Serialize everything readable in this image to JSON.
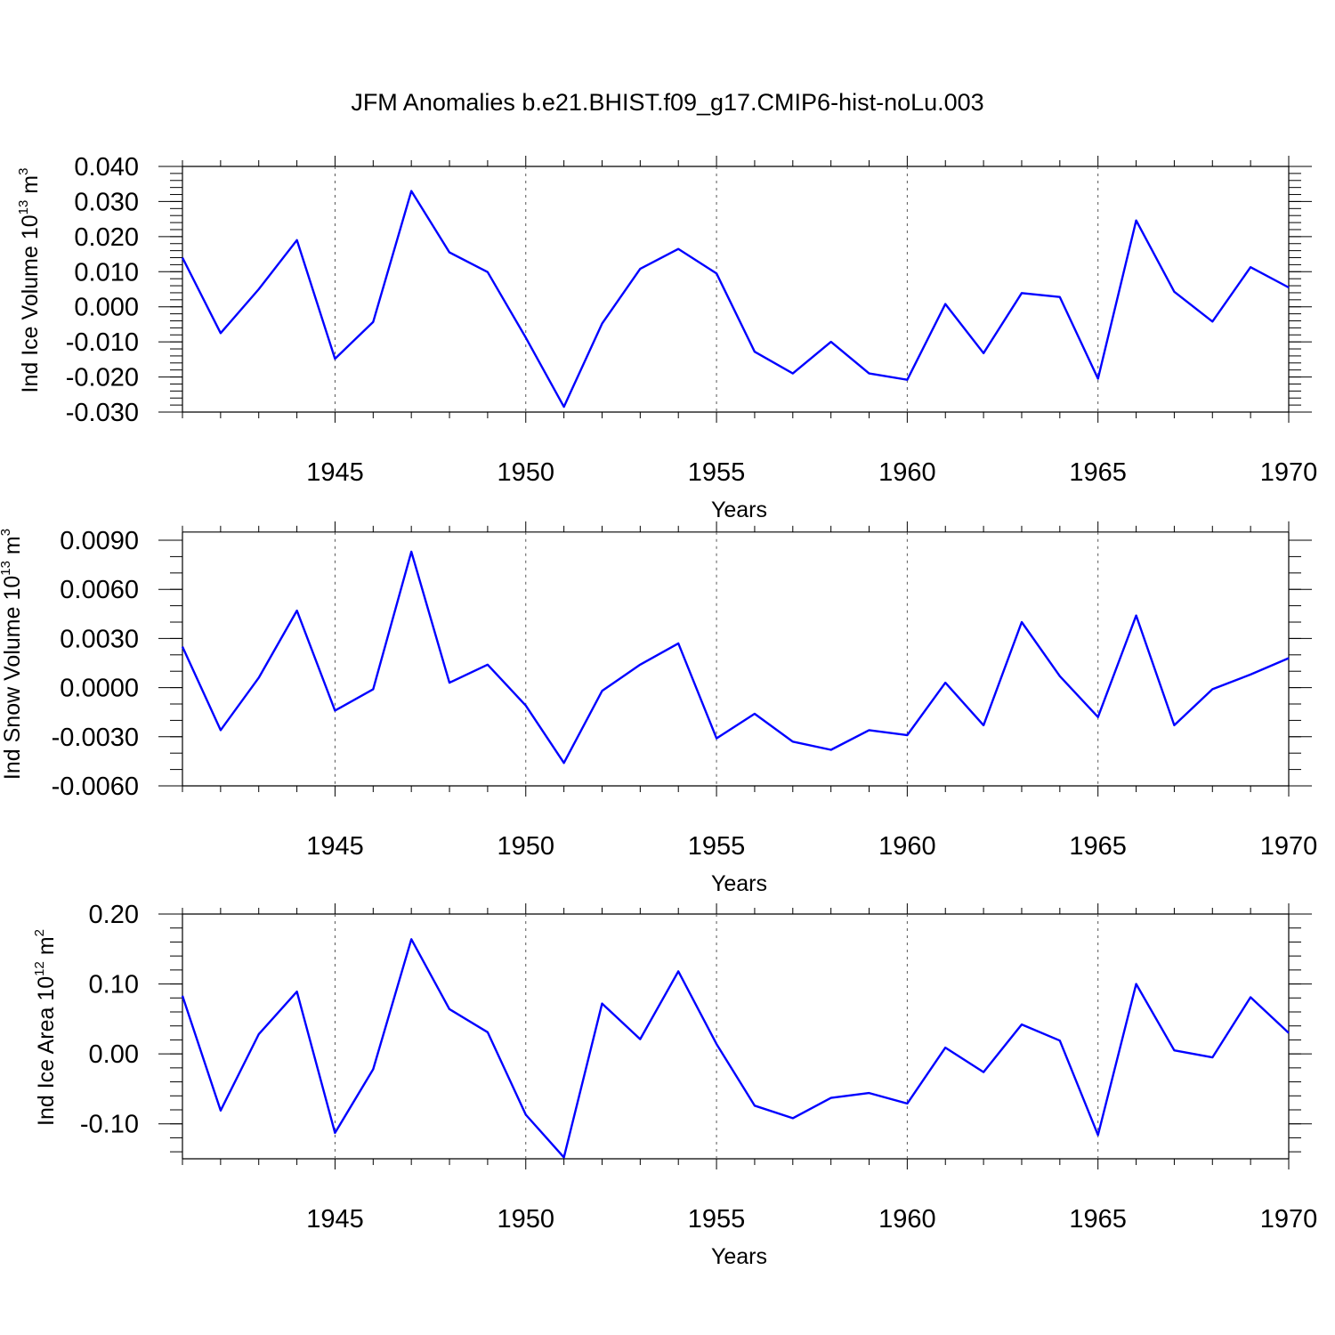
{
  "title": "JFM Anomalies b.e21.BHIST.f09_g17.CMIP6-hist-noLu.003",
  "line_color": "#0000ff",
  "chart_data": [
    {
      "type": "line",
      "title": "",
      "xlabel": "Years",
      "ylabel_text": "Ind Ice Volume 10",
      "ylabel_exp": "13",
      "ylabel_unit": " m",
      "ylabel_unit_exp": "3",
      "xlim": [
        1941,
        1970
      ],
      "ylim": [
        -0.03,
        0.04
      ],
      "x_ticks": [
        1945,
        1950,
        1955,
        1960,
        1965,
        1970
      ],
      "x_tick_labels": [
        "1945",
        "1950",
        "1955",
        "1960",
        "1965",
        "1970"
      ],
      "y_ticks": [
        0.04,
        0.03,
        0.02,
        0.01,
        0.0,
        -0.01,
        -0.02,
        -0.03
      ],
      "y_tick_labels": [
        "0.040",
        "0.030",
        "0.020",
        "0.010",
        "0.000",
        "-0.010",
        "-0.020",
        "-0.030"
      ],
      "y_minor_step": 0.002,
      "grid": "dashed vertical at major x ticks",
      "x": [
        1941,
        1942,
        1943,
        1944,
        1945,
        1946,
        1947,
        1948,
        1949,
        1950,
        1951,
        1952,
        1953,
        1954,
        1955,
        1956,
        1957,
        1958,
        1959,
        1960,
        1961,
        1962,
        1963,
        1964,
        1965,
        1966,
        1967,
        1968,
        1969,
        1970
      ],
      "values": [
        0.014,
        -0.0075,
        0.005,
        0.019,
        -0.0148,
        -0.0043,
        0.033,
        0.0155,
        0.0099,
        -0.0088,
        -0.0285,
        -0.0048,
        0.0108,
        0.0165,
        0.0095,
        -0.0128,
        -0.019,
        -0.01,
        -0.019,
        -0.0208,
        0.0008,
        -0.0132,
        0.0039,
        0.0028,
        -0.0205,
        0.0246,
        0.0043,
        -0.0042,
        0.0113,
        0.0055
      ]
    },
    {
      "type": "line",
      "title": "",
      "xlabel": "Years",
      "ylabel_text": "Ind Snow Volume 10",
      "ylabel_exp": "13",
      "ylabel_unit": " m",
      "ylabel_unit_exp": "3",
      "xlim": [
        1941,
        1970
      ],
      "ylim": [
        -0.006,
        0.009
      ],
      "y_top": 0.0095,
      "x_ticks": [
        1945,
        1950,
        1955,
        1960,
        1965,
        1970
      ],
      "x_tick_labels": [
        "1945",
        "1950",
        "1955",
        "1960",
        "1965",
        "1970"
      ],
      "y_ticks": [
        0.009,
        0.006,
        0.003,
        0.0,
        -0.003,
        -0.006
      ],
      "y_tick_labels": [
        "0.0090",
        "0.0060",
        "0.0030",
        "0.0000",
        "-0.0030",
        "-0.0060"
      ],
      "y_minor_step": 0.001,
      "grid": "dashed vertical at major x ticks",
      "x": [
        1941,
        1942,
        1943,
        1944,
        1945,
        1946,
        1947,
        1948,
        1949,
        1950,
        1951,
        1952,
        1953,
        1954,
        1955,
        1956,
        1957,
        1958,
        1959,
        1960,
        1961,
        1962,
        1963,
        1964,
        1965,
        1966,
        1967,
        1968,
        1969,
        1970
      ],
      "values": [
        0.0025,
        -0.0026,
        0.0006,
        0.0047,
        -0.0014,
        -0.0001,
        0.0083,
        0.0003,
        0.0014,
        -0.0011,
        -0.0046,
        -0.0002,
        0.0014,
        0.0027,
        -0.0031,
        -0.0016,
        -0.0033,
        -0.0038,
        -0.0026,
        -0.0029,
        0.0003,
        -0.0023,
        0.004,
        0.0007,
        -0.0018,
        0.0044,
        -0.0023,
        -0.0001,
        0.0008,
        0.0018
      ]
    },
    {
      "type": "line",
      "title": "",
      "xlabel": "Years",
      "ylabel_text": "Ind Ice Area 10",
      "ylabel_exp": "12",
      "ylabel_unit": " m",
      "ylabel_unit_exp": "2",
      "xlim": [
        1941,
        1970
      ],
      "ylim": [
        -0.15,
        0.2
      ],
      "x_ticks": [
        1945,
        1950,
        1955,
        1960,
        1965,
        1970
      ],
      "x_tick_labels": [
        "1945",
        "1950",
        "1955",
        "1960",
        "1965",
        "1970"
      ],
      "y_ticks": [
        0.2,
        0.1,
        0.0,
        -0.1
      ],
      "y_tick_labels": [
        "0.20",
        "0.10",
        "0.00",
        "-0.10"
      ],
      "y_minor_step": 0.02,
      "grid": "dashed vertical at major x ticks",
      "x": [
        1941,
        1942,
        1943,
        1944,
        1945,
        1946,
        1947,
        1948,
        1949,
        1950,
        1951,
        1952,
        1953,
        1954,
        1955,
        1956,
        1957,
        1958,
        1959,
        1960,
        1961,
        1962,
        1963,
        1964,
        1965,
        1966,
        1967,
        1968,
        1969,
        1970
      ],
      "values": [
        0.083,
        -0.081,
        0.028,
        0.089,
        -0.113,
        -0.022,
        0.164,
        0.064,
        0.031,
        -0.087,
        -0.148,
        0.072,
        0.021,
        0.118,
        0.014,
        -0.074,
        -0.092,
        -0.063,
        -0.056,
        -0.071,
        0.009,
        -0.026,
        0.042,
        0.019,
        -0.116,
        0.1,
        0.005,
        -0.005,
        0.081,
        0.03
      ]
    }
  ]
}
